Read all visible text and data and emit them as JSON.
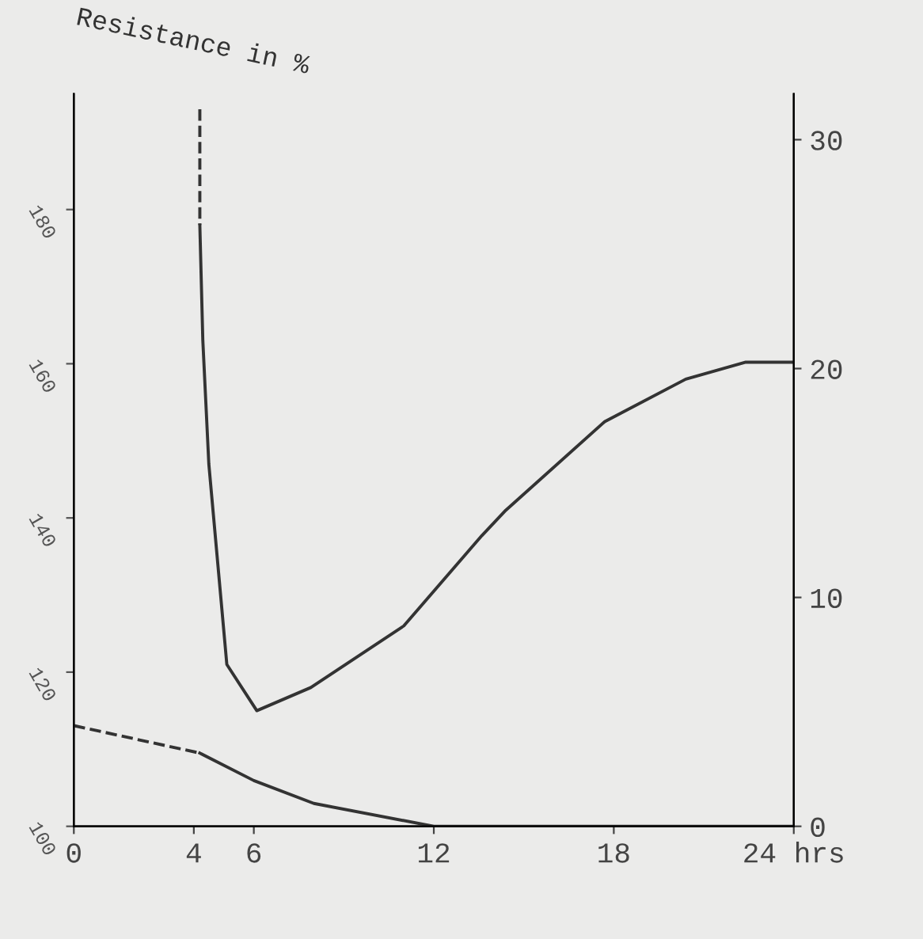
{
  "chart_data": {
    "type": "line",
    "ylabel": "Resistance in %",
    "xlim": [
      0,
      24
    ],
    "xticks": [
      0,
      4,
      6,
      12,
      18,
      {
        "value": 24,
        "label": "24 hrs"
      }
    ],
    "ylim": [
      100,
      195
    ],
    "yticks": [
      100,
      120,
      140,
      160,
      180
    ],
    "y2lim": [
      0,
      32
    ],
    "y2ticks": [
      0,
      10,
      20,
      30
    ],
    "grid": false,
    "marker": "none",
    "series": [
      {
        "color": "#333333",
        "x": [
          4.2,
          4.2
        ],
        "values": [
          193,
          178
        ],
        "line_style": "dashed"
      },
      {
        "color": "#333333",
        "x": [
          4.2,
          4.3,
          4.5,
          5.1,
          6.1,
          7.9,
          11,
          13.6,
          14.4,
          17.7,
          20.4,
          22.4,
          24
        ],
        "values": [
          178,
          163,
          147,
          121,
          115,
          118,
          126,
          137.7,
          141,
          152.5,
          158,
          160.2,
          160.2
        ],
        "line_style": "solid"
      },
      {
        "color": "#333333",
        "x": [
          0,
          4.2
        ],
        "values": [
          4.4,
          3.2
        ],
        "axis": "y2",
        "line_style": "dashed"
      },
      {
        "color": "#333333",
        "x": [
          4.2,
          6,
          8,
          12,
          14.4,
          18,
          24
        ],
        "values": [
          3.2,
          2.0,
          1.0,
          0,
          0,
          0,
          0
        ],
        "axis": "y2",
        "line_style": "solid"
      }
    ]
  }
}
